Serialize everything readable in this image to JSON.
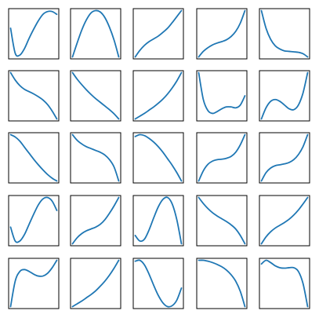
{
  "figure": {
    "line_color": "#1f77b4",
    "frame_color": "#000000",
    "background": "#ffffff",
    "rows": 5,
    "cols": 5
  },
  "chart_data": [
    {
      "type": "line",
      "grid": false,
      "x": [
        0,
        0.1,
        0.2,
        0.3,
        0.4,
        0.5,
        0.6,
        0.7,
        0.8,
        0.9,
        1
      ],
      "y": [
        0.62,
        0.08,
        0.04,
        0.18,
        0.4,
        0.6,
        0.78,
        0.92,
        0.98,
        0.98,
        0.92
      ]
    },
    {
      "type": "line",
      "grid": false,
      "x": [
        0,
        0.1,
        0.2,
        0.3,
        0.4,
        0.5,
        0.6,
        0.7,
        0.8,
        0.9,
        1
      ],
      "y": [
        0.0,
        0.3,
        0.58,
        0.8,
        0.95,
        1.0,
        0.97,
        0.85,
        0.64,
        0.36,
        0.0
      ]
    },
    {
      "type": "line",
      "grid": false,
      "x": [
        0,
        0.1,
        0.2,
        0.3,
        0.4,
        0.5,
        0.6,
        0.7,
        0.8,
        0.9,
        1
      ],
      "y": [
        0.0,
        0.14,
        0.25,
        0.33,
        0.39,
        0.45,
        0.53,
        0.62,
        0.74,
        0.87,
        1.0
      ]
    },
    {
      "type": "line",
      "grid": false,
      "x": [
        0,
        0.1,
        0.2,
        0.3,
        0.4,
        0.5,
        0.6,
        0.7,
        0.8,
        0.9,
        1
      ],
      "y": [
        0.0,
        0.12,
        0.2,
        0.26,
        0.3,
        0.33,
        0.37,
        0.44,
        0.55,
        0.73,
        1.0
      ]
    },
    {
      "type": "line",
      "grid": false,
      "x": [
        0,
        0.1,
        0.2,
        0.3,
        0.4,
        0.5,
        0.6,
        0.7,
        0.8,
        0.9,
        1
      ],
      "y": [
        1.0,
        0.62,
        0.38,
        0.24,
        0.17,
        0.13,
        0.12,
        0.11,
        0.1,
        0.07,
        0.0
      ]
    },
    {
      "type": "line",
      "grid": false,
      "x": [
        0,
        0.1,
        0.2,
        0.3,
        0.4,
        0.5,
        0.6,
        0.7,
        0.8,
        0.9,
        1
      ],
      "y": [
        1.0,
        0.84,
        0.72,
        0.64,
        0.59,
        0.54,
        0.48,
        0.41,
        0.31,
        0.17,
        0.0
      ]
    },
    {
      "type": "line",
      "grid": false,
      "x": [
        0,
        0.1,
        0.2,
        0.3,
        0.4,
        0.5,
        0.6,
        0.7,
        0.8,
        0.9,
        1
      ],
      "y": [
        1.0,
        0.86,
        0.74,
        0.63,
        0.53,
        0.44,
        0.36,
        0.28,
        0.2,
        0.11,
        0.0
      ]
    },
    {
      "type": "line",
      "grid": false,
      "x": [
        0,
        0.1,
        0.2,
        0.3,
        0.4,
        0.5,
        0.6,
        0.7,
        0.8,
        0.9,
        1
      ],
      "y": [
        0.0,
        0.06,
        0.12,
        0.19,
        0.26,
        0.34,
        0.43,
        0.54,
        0.67,
        0.82,
        1.0
      ]
    },
    {
      "type": "line",
      "grid": false,
      "x": [
        0,
        0.1,
        0.2,
        0.3,
        0.4,
        0.5,
        0.6,
        0.7,
        0.8,
        0.9,
        1
      ],
      "y": [
        1.0,
        0.42,
        0.18,
        0.12,
        0.16,
        0.22,
        0.26,
        0.26,
        0.24,
        0.3,
        0.5
      ]
    },
    {
      "type": "line",
      "grid": false,
      "x": [
        0,
        0.1,
        0.2,
        0.3,
        0.4,
        0.5,
        0.6,
        0.7,
        0.8,
        0.9,
        1
      ],
      "y": [
        0.0,
        0.24,
        0.38,
        0.42,
        0.38,
        0.3,
        0.22,
        0.2,
        0.3,
        0.56,
        1.0
      ]
    },
    {
      "type": "line",
      "grid": false,
      "x": [
        0,
        0.1,
        0.2,
        0.3,
        0.4,
        0.5,
        0.6,
        0.7,
        0.8,
        0.9,
        1
      ],
      "y": [
        1.0,
        0.95,
        0.86,
        0.73,
        0.6,
        0.47,
        0.35,
        0.24,
        0.14,
        0.06,
        0.0
      ]
    },
    {
      "type": "line",
      "grid": false,
      "x": [
        0,
        0.1,
        0.2,
        0.3,
        0.4,
        0.5,
        0.6,
        0.7,
        0.8,
        0.9,
        1
      ],
      "y": [
        1.0,
        0.88,
        0.8,
        0.74,
        0.7,
        0.66,
        0.62,
        0.56,
        0.46,
        0.3,
        0.0
      ]
    },
    {
      "type": "line",
      "grid": false,
      "x": [
        0,
        0.1,
        0.2,
        0.3,
        0.4,
        0.5,
        0.6,
        0.7,
        0.8,
        0.9,
        1
      ],
      "y": [
        0.96,
        1.0,
        0.98,
        0.92,
        0.84,
        0.74,
        0.62,
        0.48,
        0.34,
        0.18,
        0.0
      ]
    },
    {
      "type": "line",
      "grid": false,
      "x": [
        0,
        0.1,
        0.2,
        0.3,
        0.4,
        0.5,
        0.6,
        0.7,
        0.8,
        0.9,
        1
      ],
      "y": [
        0.0,
        0.22,
        0.36,
        0.43,
        0.46,
        0.47,
        0.49,
        0.53,
        0.62,
        0.78,
        1.0
      ]
    },
    {
      "type": "line",
      "grid": false,
      "x": [
        0,
        0.1,
        0.2,
        0.3,
        0.4,
        0.5,
        0.6,
        0.7,
        0.8,
        0.9,
        1
      ],
      "y": [
        0.0,
        0.18,
        0.28,
        0.33,
        0.35,
        0.37,
        0.4,
        0.46,
        0.57,
        0.74,
        1.0
      ]
    },
    {
      "type": "line",
      "grid": false,
      "x": [
        0,
        0.1,
        0.2,
        0.3,
        0.4,
        0.5,
        0.6,
        0.7,
        0.8,
        0.9,
        1
      ],
      "y": [
        0.36,
        0.06,
        0.06,
        0.2,
        0.42,
        0.64,
        0.84,
        0.97,
        1.0,
        0.92,
        0.72
      ]
    },
    {
      "type": "line",
      "grid": false,
      "x": [
        0,
        0.1,
        0.2,
        0.3,
        0.4,
        0.5,
        0.6,
        0.7,
        0.8,
        0.9,
        1
      ],
      "y": [
        0.0,
        0.13,
        0.22,
        0.28,
        0.32,
        0.36,
        0.42,
        0.52,
        0.66,
        0.82,
        1.0
      ]
    },
    {
      "type": "line",
      "grid": false,
      "x": [
        0,
        0.1,
        0.2,
        0.3,
        0.4,
        0.5,
        0.6,
        0.7,
        0.8,
        0.9,
        1
      ],
      "y": [
        0.18,
        0.06,
        0.1,
        0.3,
        0.56,
        0.8,
        0.96,
        1.0,
        0.86,
        0.52,
        0.0
      ]
    },
    {
      "type": "line",
      "grid": false,
      "x": [
        0,
        0.1,
        0.2,
        0.3,
        0.4,
        0.5,
        0.6,
        0.7,
        0.8,
        0.9,
        1
      ],
      "y": [
        1.0,
        0.87,
        0.76,
        0.67,
        0.6,
        0.54,
        0.48,
        0.41,
        0.32,
        0.18,
        0.0
      ]
    },
    {
      "type": "line",
      "grid": false,
      "x": [
        0,
        0.1,
        0.2,
        0.3,
        0.4,
        0.5,
        0.6,
        0.7,
        0.8,
        0.9,
        1
      ],
      "y": [
        0.0,
        0.15,
        0.26,
        0.34,
        0.4,
        0.46,
        0.53,
        0.62,
        0.73,
        0.86,
        1.0
      ]
    },
    {
      "type": "line",
      "grid": false,
      "x": [
        0,
        0.1,
        0.2,
        0.3,
        0.4,
        0.5,
        0.6,
        0.7,
        0.8,
        0.9,
        1
      ],
      "y": [
        0.0,
        0.55,
        0.76,
        0.8,
        0.76,
        0.7,
        0.66,
        0.66,
        0.72,
        0.84,
        1.0
      ]
    },
    {
      "type": "line",
      "grid": false,
      "x": [
        0,
        0.1,
        0.2,
        0.3,
        0.4,
        0.5,
        0.6,
        0.7,
        0.8,
        0.9,
        1
      ],
      "y": [
        0.0,
        0.06,
        0.12,
        0.19,
        0.26,
        0.34,
        0.44,
        0.55,
        0.68,
        0.83,
        1.0
      ]
    },
    {
      "type": "line",
      "grid": false,
      "x": [
        0,
        0.1,
        0.2,
        0.3,
        0.4,
        0.5,
        0.6,
        0.7,
        0.8,
        0.9,
        1
      ],
      "y": [
        0.98,
        1.0,
        0.9,
        0.7,
        0.46,
        0.24,
        0.08,
        0.0,
        0.02,
        0.14,
        0.4
      ]
    },
    {
      "type": "line",
      "grid": false,
      "x": [
        0,
        0.1,
        0.2,
        0.3,
        0.4,
        0.5,
        0.6,
        0.7,
        0.8,
        0.9,
        1
      ],
      "y": [
        1.0,
        1.0,
        0.98,
        0.95,
        0.91,
        0.86,
        0.79,
        0.69,
        0.55,
        0.33,
        0.0
      ]
    },
    {
      "type": "line",
      "grid": false,
      "x": [
        0,
        0.1,
        0.2,
        0.3,
        0.4,
        0.5,
        0.6,
        0.7,
        0.8,
        0.9,
        1
      ],
      "y": [
        0.92,
        1.0,
        0.95,
        0.88,
        0.84,
        0.83,
        0.84,
        0.84,
        0.76,
        0.5,
        0.0
      ]
    }
  ]
}
